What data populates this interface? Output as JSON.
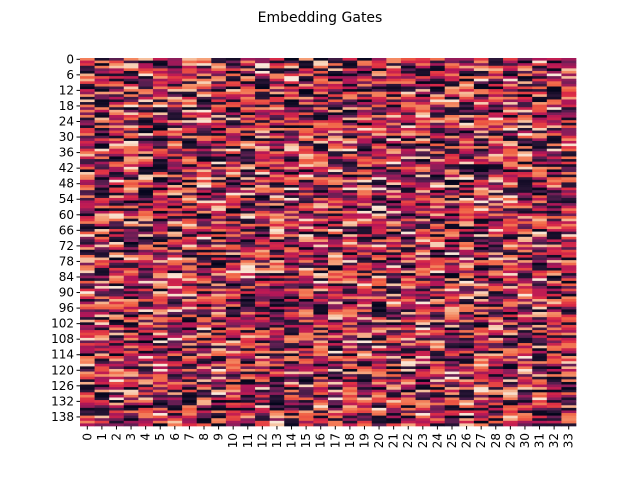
{
  "chart_data": {
    "type": "heatmap",
    "title": "Embedding Gates",
    "xlabel": "",
    "ylabel": "",
    "n_rows": 142,
    "n_cols": 34,
    "x_tick_labels": [
      "0",
      "1",
      "2",
      "3",
      "4",
      "5",
      "6",
      "7",
      "8",
      "9",
      "10",
      "11",
      "12",
      "13",
      "14",
      "15",
      "16",
      "17",
      "18",
      "19",
      "20",
      "21",
      "22",
      "23",
      "24",
      "25",
      "26",
      "27",
      "28",
      "29",
      "30",
      "31",
      "32",
      "33"
    ],
    "y_tick_labels": [
      "0",
      "6",
      "12",
      "18",
      "24",
      "30",
      "36",
      "42",
      "48",
      "54",
      "60",
      "66",
      "72",
      "78",
      "84",
      "90",
      "96",
      "102",
      "108",
      "114",
      "120",
      "126",
      "132",
      "138"
    ],
    "y_tick_step": 6,
    "colormap": "rocket",
    "colormap_stops": [
      "#03051a",
      "#2a1637",
      "#551e4f",
      "#841e5a",
      "#b41658",
      "#dd2c45",
      "#f06043",
      "#f5936a",
      "#f6c19f",
      "#faebdd"
    ],
    "value_range": [
      0,
      1
    ],
    "grid": false,
    "colorbar": false,
    "values_note": "",
    "seed": 20240611
  }
}
